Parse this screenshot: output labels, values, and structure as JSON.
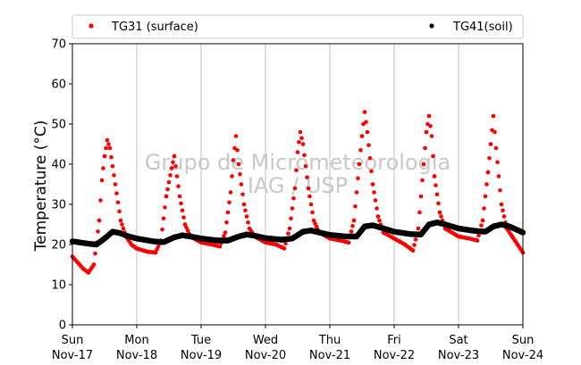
{
  "chart_data": {
    "type": "scatter",
    "title": "",
    "xlabel": "",
    "ylabel": "Temperature (°C)",
    "ylim": [
      0,
      70
    ],
    "yticks": [
      0,
      10,
      20,
      30,
      40,
      50,
      60,
      70
    ],
    "xlim": [
      "2019-11-17",
      "2019-11-24"
    ],
    "x_tick_labels": [
      {
        "day": "Sun",
        "date": "Nov-17"
      },
      {
        "day": "Mon",
        "date": "Nov-18"
      },
      {
        "day": "Tue",
        "date": "Nov-19"
      },
      {
        "day": "Wed",
        "date": "Nov-20"
      },
      {
        "day": "Thu",
        "date": "Nov-21"
      },
      {
        "day": "Fri",
        "date": "Nov-22"
      },
      {
        "day": "Sat",
        "date": "Nov-23"
      },
      {
        "day": "Sun",
        "date": "Nov-24"
      }
    ],
    "grid": "vertical",
    "legend_position": "top",
    "watermark": [
      "Grupo de Micrometeorologia",
      "IAG / USP"
    ],
    "series": [
      {
        "name": "TG31 (surface)",
        "color": "#ff0000",
        "points": [
          [
            "Nov-17 00:00",
            17.0
          ],
          [
            "Nov-17 02:00",
            15.5
          ],
          [
            "Nov-17 04:00",
            14.0
          ],
          [
            "Nov-17 06:00",
            13.0
          ],
          [
            "Nov-17 08:00",
            15.0
          ],
          [
            "Nov-17 10:00",
            26.0
          ],
          [
            "Nov-17 11:00",
            36.0
          ],
          [
            "Nov-17 12:00",
            42.0
          ],
          [
            "Nov-17 13:00",
            46.0
          ],
          [
            "Nov-17 14:00",
            44.0
          ],
          [
            "Nov-17 16:00",
            35.0
          ],
          [
            "Nov-17 18:00",
            26.0
          ],
          [
            "Nov-17 20:00",
            22.0
          ],
          [
            "Nov-17 22:00",
            20.0
          ],
          [
            "Nov-18 00:00",
            19.0
          ],
          [
            "Nov-18 04:00",
            18.2
          ],
          [
            "Nov-18 07:00",
            18.0
          ],
          [
            "Nov-18 09:00",
            21.0
          ],
          [
            "Nov-18 11:00",
            32.0
          ],
          [
            "Nov-18 13:00",
            39.0
          ],
          [
            "Nov-18 14:00",
            42.0
          ],
          [
            "Nov-18 16:00",
            32.0
          ],
          [
            "Nov-18 18:00",
            25.0
          ],
          [
            "Nov-18 20:00",
            22.0
          ],
          [
            "Nov-19 00:00",
            20.5
          ],
          [
            "Nov-19 04:00",
            20.0
          ],
          [
            "Nov-19 07:00",
            19.5
          ],
          [
            "Nov-19 09:00",
            23.0
          ],
          [
            "Nov-19 11:00",
            33.0
          ],
          [
            "Nov-19 12:00",
            41.0
          ],
          [
            "Nov-19 13:00",
            47.0
          ],
          [
            "Nov-19 14:00",
            40.0
          ],
          [
            "Nov-19 16:00",
            30.0
          ],
          [
            "Nov-19 18:00",
            24.0
          ],
          [
            "Nov-19 20:00",
            22.0
          ],
          [
            "Nov-20 00:00",
            20.5
          ],
          [
            "Nov-20 04:00",
            20.0
          ],
          [
            "Nov-20 07:00",
            19.0
          ],
          [
            "Nov-20 09:00",
            24.0
          ],
          [
            "Nov-20 11:00",
            34.0
          ],
          [
            "Nov-20 12:00",
            43.0
          ],
          [
            "Nov-20 13:00",
            48.0
          ],
          [
            "Nov-20 14:00",
            45.0
          ],
          [
            "Nov-20 16:00",
            34.0
          ],
          [
            "Nov-20 18:00",
            26.0
          ],
          [
            "Nov-20 20:00",
            23.0
          ],
          [
            "Nov-21 00:00",
            21.5
          ],
          [
            "Nov-21 04:00",
            21.0
          ],
          [
            "Nov-21 07:00",
            20.5
          ],
          [
            "Nov-21 09:00",
            26.0
          ],
          [
            "Nov-21 11:00",
            40.0
          ],
          [
            "Nov-21 12:00",
            47.0
          ],
          [
            "Nov-21 13:00",
            53.0
          ],
          [
            "Nov-21 14:00",
            48.0
          ],
          [
            "Nov-21 16:00",
            35.0
          ],
          [
            "Nov-21 18:00",
            27.0
          ],
          [
            "Nov-21 20:00",
            23.0
          ],
          [
            "Nov-22 00:00",
            21.5
          ],
          [
            "Nov-22 04:00",
            20.0
          ],
          [
            "Nov-22 07:00",
            18.5
          ],
          [
            "Nov-22 09:00",
            24.0
          ],
          [
            "Nov-22 11:00",
            40.0
          ],
          [
            "Nov-22 12:00",
            48.0
          ],
          [
            "Nov-22 13:00",
            52.0
          ],
          [
            "Nov-22 14:00",
            47.0
          ],
          [
            "Nov-22 15:00",
            37.0
          ],
          [
            "Nov-22 17:00",
            28.0
          ],
          [
            "Nov-22 19:00",
            24.0
          ],
          [
            "Nov-23 00:00",
            22.0
          ],
          [
            "Nov-23 04:00",
            21.5
          ],
          [
            "Nov-23 07:00",
            21.0
          ],
          [
            "Nov-23 09:00",
            26.0
          ],
          [
            "Nov-23 11:00",
            38.0
          ],
          [
            "Nov-23 12:00",
            45.0
          ],
          [
            "Nov-23 13:00",
            52.0
          ],
          [
            "Nov-23 14:00",
            44.0
          ],
          [
            "Nov-23 16:00",
            30.0
          ],
          [
            "Nov-23 18:00",
            24.0
          ],
          [
            "Nov-23 20:00",
            22.0
          ],
          [
            "Nov-24 00:00",
            18.0
          ]
        ]
      },
      {
        "name": "TG41(soil)",
        "color": "#000000",
        "points": [
          [
            "Nov-17 00:00",
            20.8
          ],
          [
            "Nov-17 06:00",
            20.2
          ],
          [
            "Nov-17 09:00",
            20.0
          ],
          [
            "Nov-17 12:00",
            21.5
          ],
          [
            "Nov-17 15:00",
            23.2
          ],
          [
            "Nov-17 18:00",
            22.8
          ],
          [
            "Nov-17 21:00",
            22.0
          ],
          [
            "Nov-18 00:00",
            21.5
          ],
          [
            "Nov-18 06:00",
            20.8
          ],
          [
            "Nov-18 10:00",
            20.6
          ],
          [
            "Nov-18 14:00",
            21.8
          ],
          [
            "Nov-18 17:00",
            22.3
          ],
          [
            "Nov-18 20:00",
            22.0
          ],
          [
            "Nov-19 00:00",
            21.5
          ],
          [
            "Nov-19 06:00",
            21.0
          ],
          [
            "Nov-19 10:00",
            21.0
          ],
          [
            "Nov-19 14:00",
            22.0
          ],
          [
            "Nov-19 17:00",
            22.5
          ],
          [
            "Nov-19 20:00",
            22.2
          ],
          [
            "Nov-20 00:00",
            21.6
          ],
          [
            "Nov-20 06:00",
            21.2
          ],
          [
            "Nov-20 10:00",
            21.5
          ],
          [
            "Nov-20 14:00",
            23.2
          ],
          [
            "Nov-20 17:00",
            23.5
          ],
          [
            "Nov-20 20:00",
            23.0
          ],
          [
            "Nov-21 00:00",
            22.4
          ],
          [
            "Nov-21 06:00",
            22.0
          ],
          [
            "Nov-21 10:00",
            22.0
          ],
          [
            "Nov-21 13:00",
            24.5
          ],
          [
            "Nov-21 16:00",
            24.8
          ],
          [
            "Nov-21 19:00",
            24.2
          ],
          [
            "Nov-22 00:00",
            23.2
          ],
          [
            "Nov-22 06:00",
            22.6
          ],
          [
            "Nov-22 10:00",
            22.5
          ],
          [
            "Nov-22 13:00",
            25.0
          ],
          [
            "Nov-22 16:00",
            25.5
          ],
          [
            "Nov-22 19:00",
            25.0
          ],
          [
            "Nov-23 00:00",
            24.0
          ],
          [
            "Nov-23 06:00",
            23.4
          ],
          [
            "Nov-23 10:00",
            23.2
          ],
          [
            "Nov-23 13:00",
            24.5
          ],
          [
            "Nov-23 16:00",
            25.0
          ],
          [
            "Nov-23 19:00",
            24.5
          ],
          [
            "Nov-24 00:00",
            23.0
          ]
        ]
      }
    ]
  }
}
